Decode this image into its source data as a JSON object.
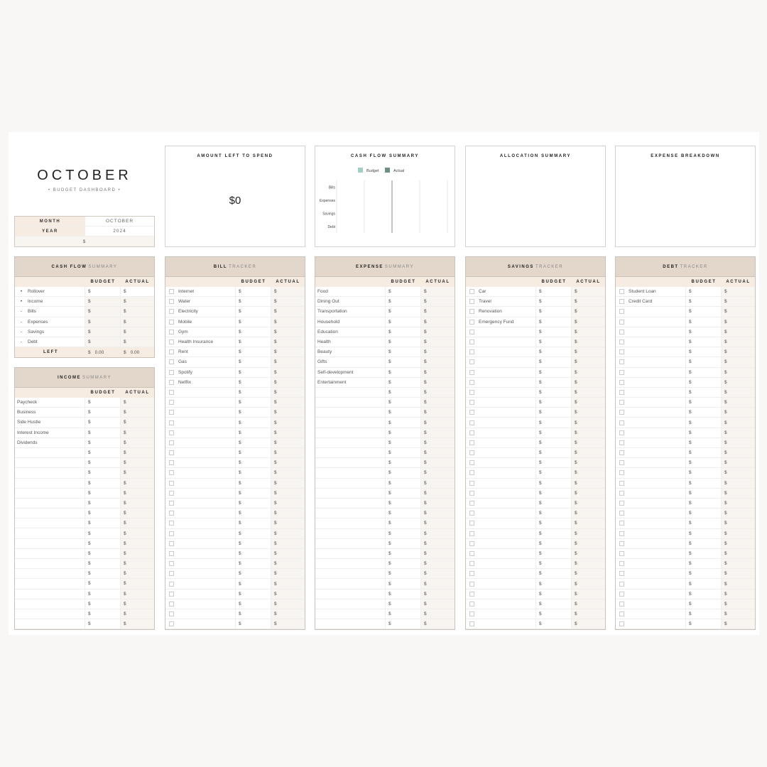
{
  "header": {
    "title": "OCTOBER",
    "subtitle": "• BUDGET DASHBOARD •"
  },
  "info": {
    "month_label": "MONTH",
    "month_value": "OCTOBER",
    "year_label": "YEAR",
    "year_value": "2024",
    "currency": "$"
  },
  "amount_left": {
    "title": "AMOUNT LEFT TO SPEND",
    "value": "$0"
  },
  "cashflow_chart_title": "CASH FLOW SUMMARY",
  "allocation": {
    "title": "ALLOCATION SUMMARY"
  },
  "expense_breakdown": {
    "title": "EXPENSE BREAKDOWN"
  },
  "chart_data": {
    "type": "bar",
    "orientation": "horizontal",
    "title": "CASH FLOW SUMMARY",
    "categories": [
      "Bills",
      "Expenses",
      "Savings",
      "Debt"
    ],
    "series": [
      {
        "name": "Budget",
        "color": "#a3cfc3",
        "values": [
          0,
          0,
          0,
          0
        ]
      },
      {
        "name": "Actual",
        "color": "#6f8f84",
        "values": [
          0,
          0,
          0,
          0
        ]
      }
    ],
    "legend": "top",
    "grid": true
  },
  "columns": {
    "budget": "BUDGET",
    "actual": "ACTUAL",
    "currency": "$"
  },
  "cash_flow": {
    "title_bold": "CASH FLOW",
    "title_light": "SUMMARY",
    "rows": [
      {
        "bullet": "•",
        "label": "Rollover"
      },
      {
        "bullet": "•",
        "label": "Income"
      },
      {
        "bullet": "-",
        "label": "Bills"
      },
      {
        "bullet": "-",
        "label": "Expenses"
      },
      {
        "bullet": "-",
        "label": "Savings"
      },
      {
        "bullet": "-",
        "label": "Debt"
      }
    ],
    "left_label": "LEFT",
    "left_budget": "0.00",
    "left_actual": "0.00"
  },
  "income": {
    "title_bold": "INCOME",
    "title_light": "SUMMARY",
    "items": [
      "Paycheck",
      "Business",
      "Side Hustle",
      "Interest Income",
      "Dividends"
    ]
  },
  "bills": {
    "title_bold": "BILL",
    "title_light": "TRACKER",
    "items": [
      "Internet",
      "Water",
      "Electricity",
      "Mobile",
      "Gym",
      "Health Insurance",
      "Rent",
      "Gas",
      "Spotify",
      "Netflix"
    ]
  },
  "expenses": {
    "title_bold": "EXPENSE",
    "title_light": "SUMMARY",
    "items": [
      "Food",
      "Dining Out",
      "Transportation",
      "Household",
      "Education",
      "Health",
      "Beauty",
      "Gifts",
      "Self-development",
      "Entertainment"
    ]
  },
  "savings": {
    "title_bold": "SAVINGS",
    "title_light": "TRACKER",
    "items": [
      "Car",
      "Travel",
      "Renovation",
      "Emergency Fund"
    ]
  },
  "debt": {
    "title_bold": "DEBT",
    "title_light": "TRACKER",
    "items": [
      "Student Loan",
      "Credit Card"
    ]
  }
}
